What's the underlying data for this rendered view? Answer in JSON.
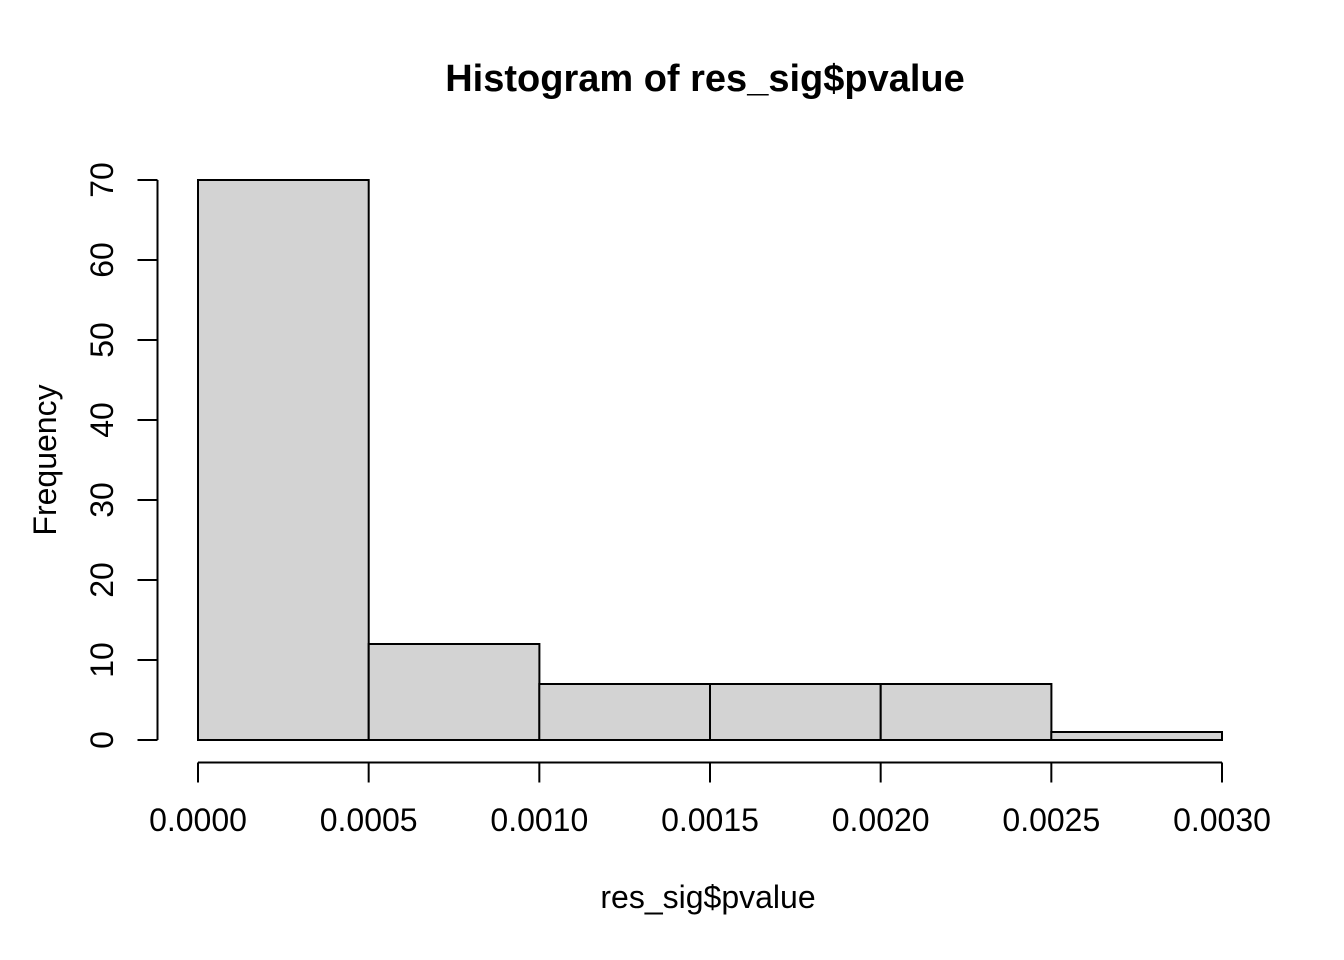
{
  "chart_data": {
    "type": "bar",
    "subtype": "histogram",
    "title": "Histogram of res_sig$pvalue",
    "xlabel": "res_sig$pvalue",
    "ylabel": "Frequency",
    "breaks": [
      0.0,
      0.0005,
      0.001,
      0.0015,
      0.002,
      0.0025,
      0.003
    ],
    "counts": [
      70,
      12,
      7,
      7,
      7,
      1
    ],
    "x_ticks": [
      {
        "value": 0.0,
        "label": "0.0000"
      },
      {
        "value": 0.0005,
        "label": "0.0005"
      },
      {
        "value": 0.001,
        "label": "0.0010"
      },
      {
        "value": 0.0015,
        "label": "0.0015"
      },
      {
        "value": 0.002,
        "label": "0.0020"
      },
      {
        "value": 0.0025,
        "label": "0.0025"
      },
      {
        "value": 0.003,
        "label": "0.0030"
      }
    ],
    "y_ticks": [
      {
        "value": 0,
        "label": "0"
      },
      {
        "value": 10,
        "label": "10"
      },
      {
        "value": 20,
        "label": "20"
      },
      {
        "value": 30,
        "label": "30"
      },
      {
        "value": 40,
        "label": "40"
      },
      {
        "value": 50,
        "label": "50"
      },
      {
        "value": 60,
        "label": "60"
      },
      {
        "value": 70,
        "label": "70"
      }
    ],
    "xlim": [
      0,
      0.003
    ],
    "ylim": [
      0,
      70
    ],
    "grid": false,
    "legend_position": "none",
    "colors": {
      "bar_fill": "#d3d3d3",
      "bar_stroke": "#000000",
      "axis": "#000000",
      "text": "#000000",
      "background": "#ffffff"
    }
  }
}
